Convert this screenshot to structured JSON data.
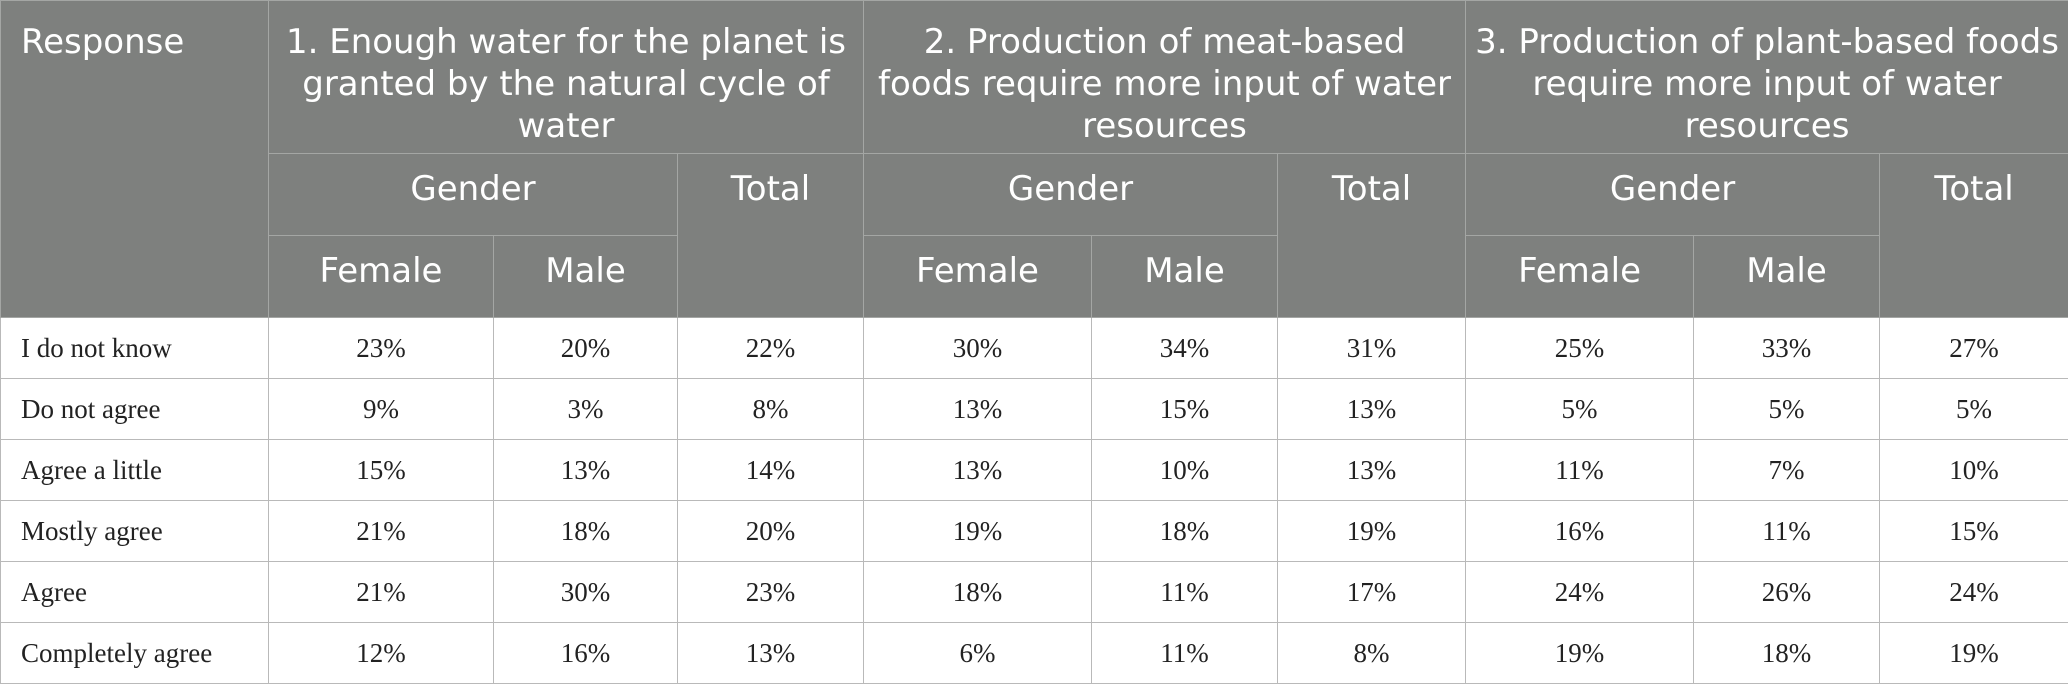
{
  "table": {
    "response_header": "Response",
    "questions": [
      "1. Enough water for the planet is granted by the natural cycle of water",
      "2. Production of meat-based foods require more input of water resources",
      "3. Production of plant-based foods require more input of water resources"
    ],
    "gender_header": "Gender",
    "total_header": "Total",
    "female_header": "Female",
    "male_header": "Male",
    "rows": [
      {
        "label": "I do not know",
        "values": [
          "23%",
          "20%",
          "22%",
          "30%",
          "34%",
          "31%",
          "25%",
          "33%",
          "27%"
        ]
      },
      {
        "label": "Do not agree",
        "values": [
          "9%",
          "3%",
          "8%",
          "13%",
          "15%",
          "13%",
          "5%",
          "5%",
          "5%"
        ]
      },
      {
        "label": "Agree a little",
        "values": [
          "15%",
          "13%",
          "14%",
          "13%",
          "10%",
          "13%",
          "11%",
          "7%",
          "10%"
        ]
      },
      {
        "label": "Mostly agree",
        "values": [
          "21%",
          "18%",
          "20%",
          "19%",
          "18%",
          "19%",
          "16%",
          "11%",
          "15%"
        ]
      },
      {
        "label": "Agree",
        "values": [
          "21%",
          "30%",
          "23%",
          "18%",
          "11%",
          "17%",
          "24%",
          "26%",
          "24%"
        ]
      },
      {
        "label": "Completely agree",
        "values": [
          "12%",
          "16%",
          "13%",
          "6%",
          "11%",
          "8%",
          "19%",
          "18%",
          "19%"
        ]
      }
    ]
  }
}
